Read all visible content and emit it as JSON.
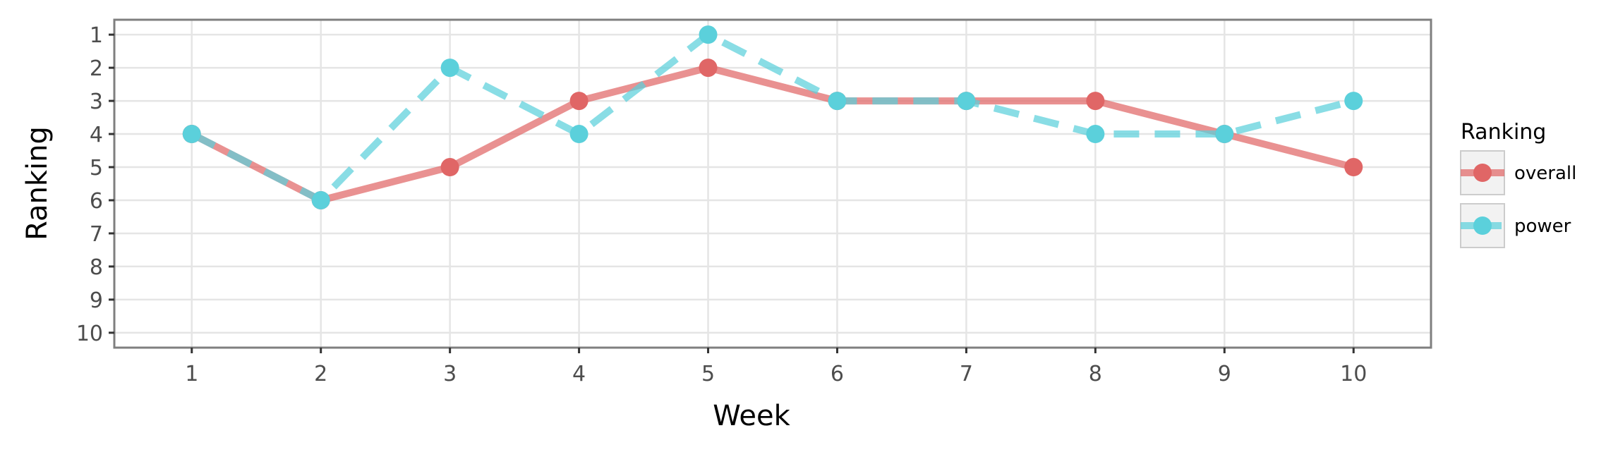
{
  "chart_data": {
    "type": "line",
    "xlabel": "Week",
    "ylabel": "Ranking",
    "x": [
      1,
      2,
      3,
      4,
      5,
      6,
      7,
      8,
      9,
      10
    ],
    "x_ticks": [
      "1",
      "2",
      "3",
      "4",
      "5",
      "6",
      "7",
      "8",
      "9",
      "10"
    ],
    "y_ticks": [
      "1",
      "2",
      "3",
      "4",
      "5",
      "6",
      "7",
      "8",
      "9",
      "10"
    ],
    "xlim": [
      0.4,
      10.6
    ],
    "ylim": [
      0.55,
      10.45
    ],
    "y_reversed": true,
    "grid": true,
    "legend": {
      "title": "Ranking",
      "position": "right"
    },
    "series": [
      {
        "name": "overall",
        "color": "#e06666",
        "line_style": "solid",
        "values": [
          4,
          6,
          5,
          3,
          2,
          3,
          3,
          3,
          4,
          5
        ]
      },
      {
        "name": "power",
        "color": "#5bd0db",
        "line_style": "dashed",
        "values": [
          4,
          6,
          2,
          4,
          1,
          3,
          3,
          4,
          4,
          3
        ]
      }
    ]
  }
}
